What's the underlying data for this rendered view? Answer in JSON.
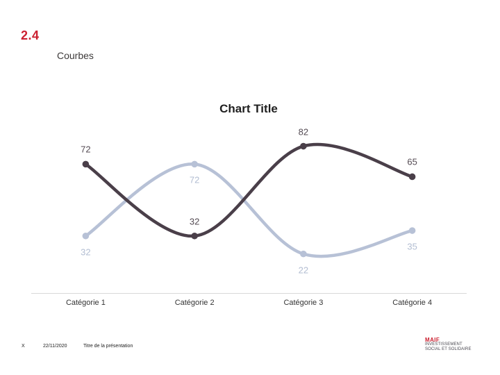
{
  "slide": {
    "section_number": "2.4",
    "section_title": "Courbes",
    "accent_color": "#cb2030",
    "footer": {
      "slide_number": "X",
      "date": "22/11/2020",
      "presentation_title": "Titre de la présentation"
    },
    "logo": {
      "brand": "MAIF",
      "tagline_line1": "INVESTISSEMENT",
      "tagline_line2": "SOCIAL ET SOLIDAIRE",
      "brand_color": "#cb2030",
      "tagline_color": "#47464e"
    }
  },
  "chart_data": {
    "type": "line",
    "title": "Chart Title",
    "categories": [
      "Catégorie 1",
      "Catégorie 2",
      "Catégorie 3",
      "Catégorie 4"
    ],
    "series": [
      {
        "name": "dark",
        "values": [
          72,
          32,
          82,
          65
        ],
        "color": "#4a3f49",
        "label_color": "#544b53",
        "label_position": "above"
      },
      {
        "name": "light",
        "values": [
          32,
          72,
          22,
          35
        ],
        "color": "#b7c1d6",
        "label_color": "#b2bdd2",
        "label_position": "below"
      }
    ],
    "xlabel": "",
    "ylabel": "",
    "ylim": [
      0,
      100
    ],
    "gridlines": false,
    "legend": "none",
    "data_labels": true,
    "smoothed": true,
    "markers": true,
    "axis_line_color": "#d9d9d9"
  }
}
